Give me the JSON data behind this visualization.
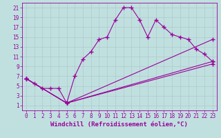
{
  "title": "",
  "xlabel": "Windchill (Refroidissement éolien,°C)",
  "background_color": "#c0e0e0",
  "line_color": "#990099",
  "xlim": [
    -0.5,
    23.5
  ],
  "ylim": [
    0,
    22
  ],
  "xticks": [
    0,
    1,
    2,
    3,
    4,
    5,
    6,
    7,
    8,
    9,
    10,
    11,
    12,
    13,
    14,
    15,
    16,
    17,
    18,
    19,
    20,
    21,
    22,
    23
  ],
  "yticks": [
    1,
    3,
    5,
    7,
    9,
    11,
    13,
    15,
    17,
    19,
    21
  ],
  "line1_x": [
    0,
    1,
    2,
    3,
    4,
    5,
    6,
    7,
    8,
    9,
    10,
    11,
    12,
    13,
    14,
    15,
    16,
    17,
    18,
    19,
    20,
    21,
    22,
    23
  ],
  "line1_y": [
    6.5,
    5.5,
    4.5,
    4.5,
    4.5,
    1.5,
    7.0,
    10.5,
    12.0,
    14.5,
    15.0,
    18.5,
    21.0,
    21.0,
    18.5,
    15.0,
    18.5,
    17.0,
    15.5,
    15.0,
    14.5,
    12.5,
    11.5,
    10.0
  ],
  "line2_x": [
    0,
    5,
    23
  ],
  "line2_y": [
    6.5,
    1.5,
    10.0
  ],
  "line3_x": [
    0,
    5,
    23
  ],
  "line3_y": [
    6.5,
    1.5,
    14.5
  ],
  "line4_x": [
    0,
    5,
    23
  ],
  "line4_y": [
    6.5,
    1.5,
    9.5
  ],
  "grid_color": "#b0c8c8",
  "tick_fontsize": 5.5,
  "label_fontsize": 6.5
}
